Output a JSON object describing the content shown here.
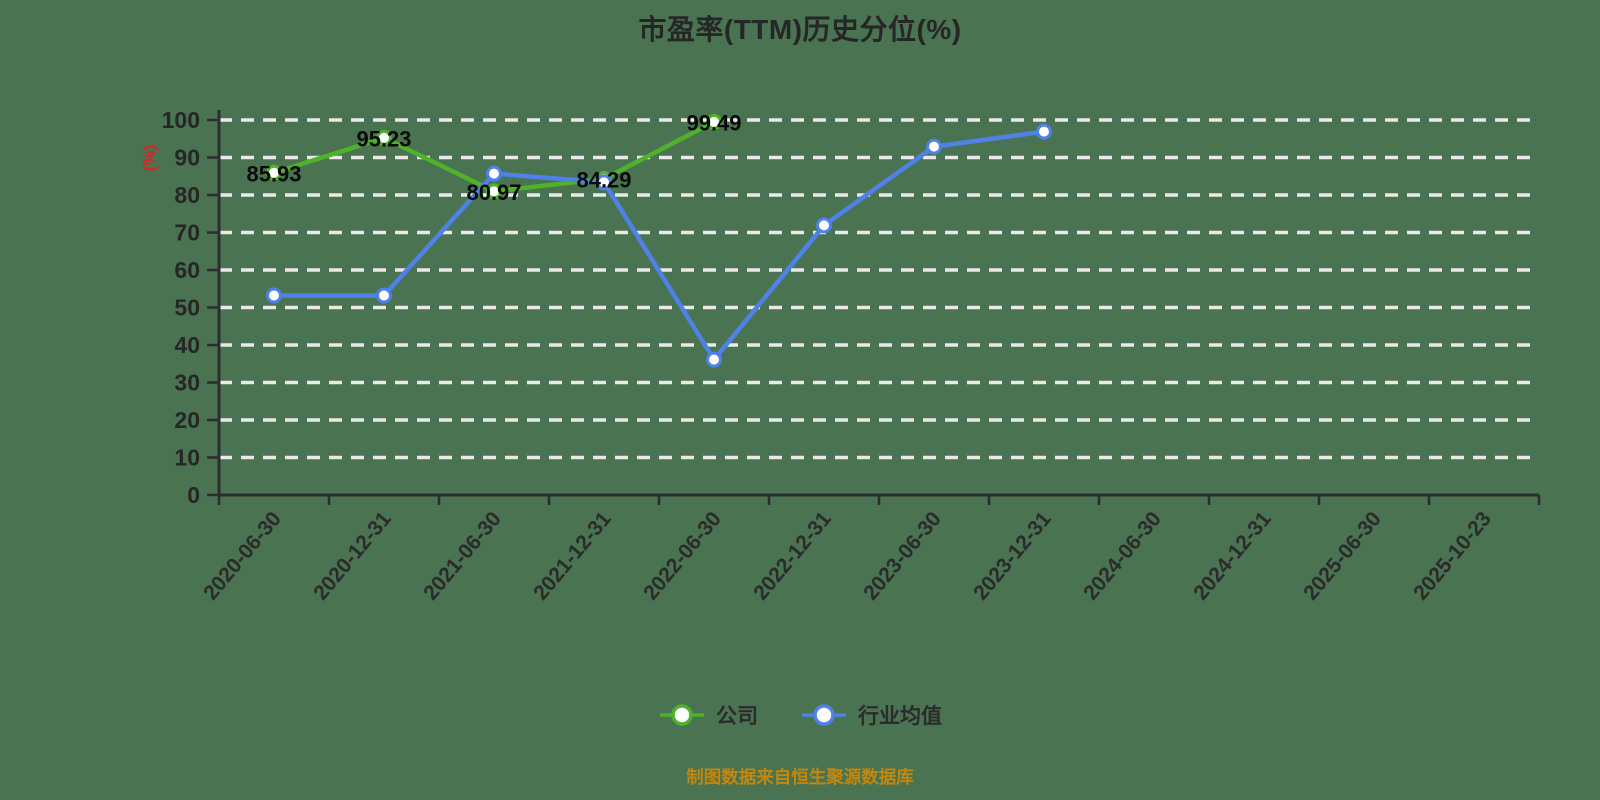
{
  "title": "市盈率(TTM)历史分位(%)",
  "y_axis_unit": "(%)",
  "footer": "制图数据来自恒生聚源数据库",
  "legend": [
    {
      "label": "公司",
      "color": "#4fb229"
    },
    {
      "label": "行业均值",
      "color": "#4e82e8"
    }
  ],
  "colors": {
    "background": "#4a7352",
    "axis": "#2d2d2d",
    "gridline": "#e9e9e9",
    "tick_label": "#262626",
    "data_label": "#0a0a0a",
    "unit_label": "#e02222",
    "footer_text": "#c2870f",
    "marker_fill": "#ffffff"
  },
  "chart_data": {
    "type": "line",
    "title": "市盈率(TTM)历史分位(%)",
    "xlabel": "",
    "ylabel": "(%)",
    "ylim": [
      0,
      100
    ],
    "y_tick_step": 10,
    "grid": "horizontal-dashed",
    "legend_position": "bottom",
    "categories": [
      "2020-06-30",
      "2020-12-31",
      "2021-06-30",
      "2021-12-31",
      "2022-06-30",
      "2022-12-31",
      "2023-06-30",
      "2023-12-31",
      "2024-06-30",
      "2024-12-31",
      "2025-06-30",
      "2025-10-23"
    ],
    "series": [
      {
        "name": "公司",
        "color": "#4fb229",
        "values": [
          85.93,
          95.23,
          80.97,
          84.29,
          99.49,
          null,
          null,
          null,
          null,
          null,
          null,
          null
        ],
        "labels": [
          "85.93",
          "95.23",
          "80.97",
          "84.29",
          "99.49",
          null,
          null,
          null,
          null,
          null,
          null,
          null
        ]
      },
      {
        "name": "行业均值",
        "color": "#4e82e8",
        "values": [
          53.2,
          53.2,
          85.7,
          83.4,
          36.1,
          71.9,
          92.9,
          96.9,
          null,
          null,
          null,
          null
        ],
        "labels": null
      }
    ]
  }
}
